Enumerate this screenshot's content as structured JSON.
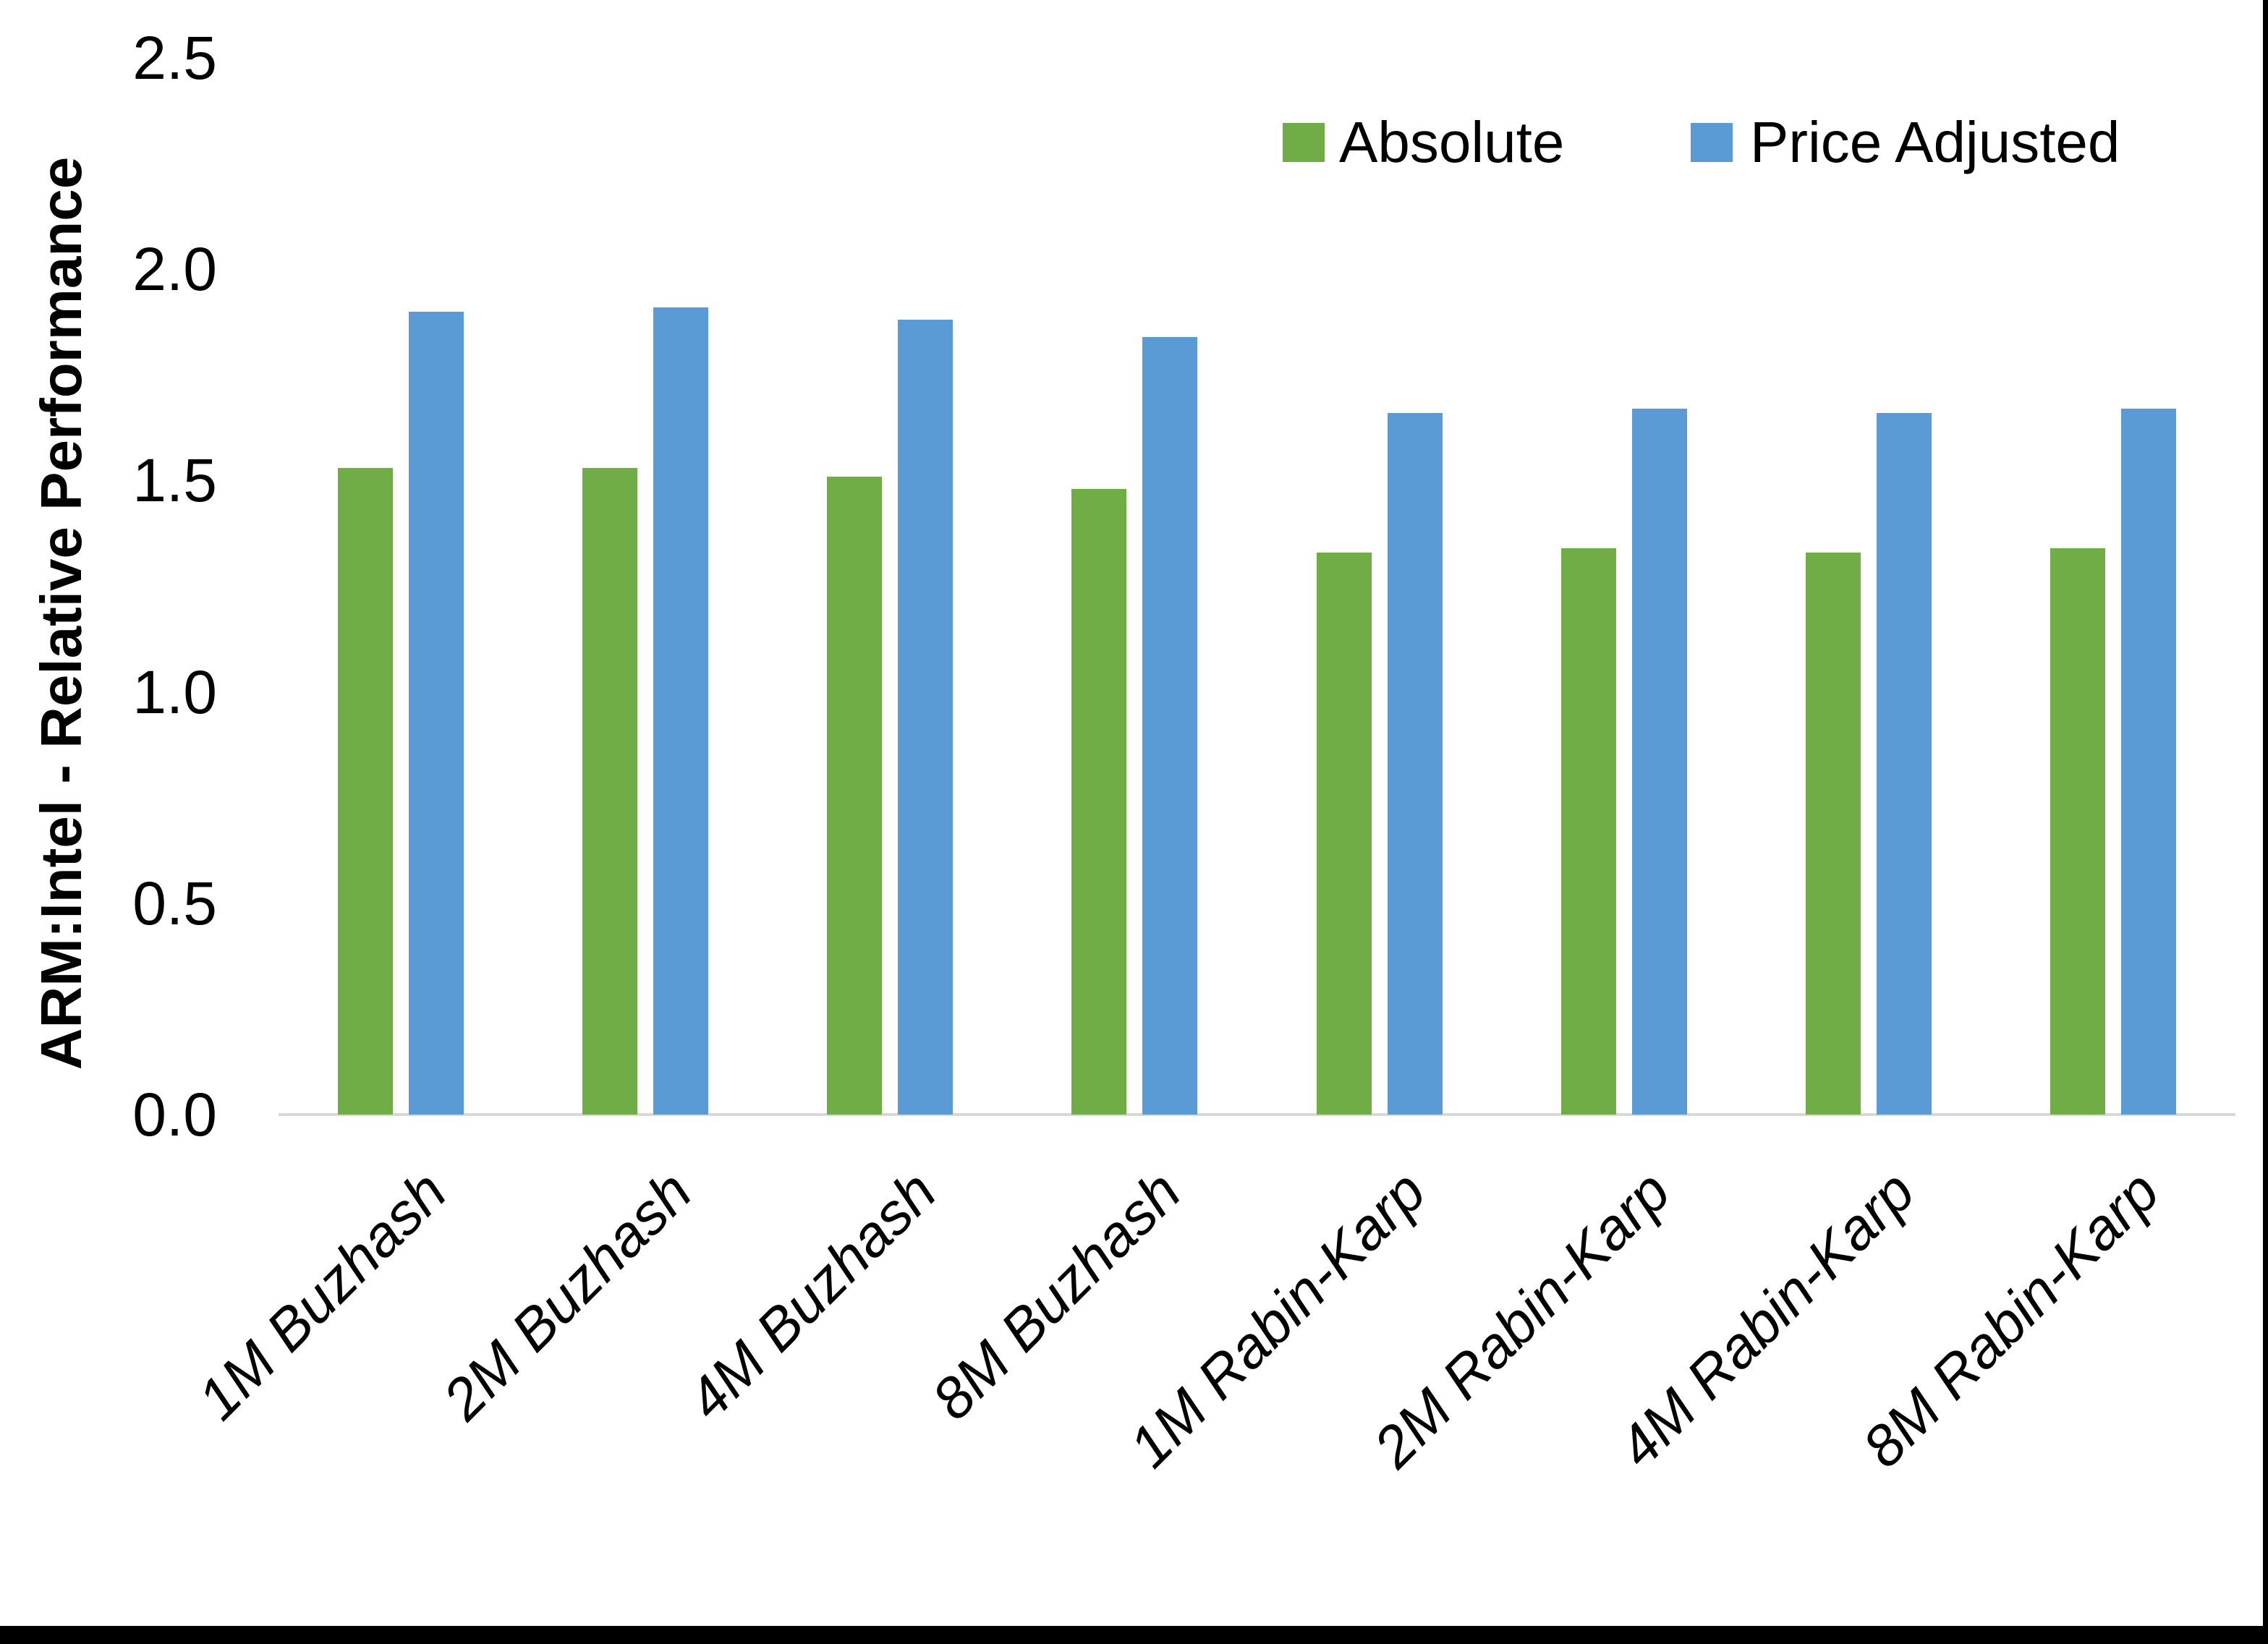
{
  "chart_data": {
    "type": "bar",
    "title": "",
    "xlabel": "",
    "ylabel": "ARM:Intel - Relative Performance",
    "ylim": [
      0,
      2.5
    ],
    "ytick_labels": [
      "2.5",
      "2.0",
      "1.5",
      "1.0",
      "0.5",
      "0.0"
    ],
    "grid": false,
    "legend_position": "top-right",
    "categories": [
      "1M Buzhash",
      "2M Buzhash",
      "4M Buzhash",
      "8M Buzhash",
      "1M Rabin-Karp",
      "2M Rabin-Karp",
      "4M Rabin-Karp",
      "8M Rabin-Karp"
    ],
    "series": [
      {
        "name": "Absolute",
        "color": "#70AD47",
        "values": [
          1.53,
          1.53,
          1.51,
          1.48,
          1.33,
          1.34,
          1.33,
          1.34
        ]
      },
      {
        "name": "Price Adjusted",
        "color": "#5B9BD5",
        "values": [
          1.9,
          1.91,
          1.88,
          1.84,
          1.66,
          1.67,
          1.66,
          1.67
        ]
      }
    ]
  },
  "colors": {
    "background": "#FFFFFF",
    "axis_line": "#D9D9D9",
    "text": "#000000",
    "border": "#000000"
  }
}
